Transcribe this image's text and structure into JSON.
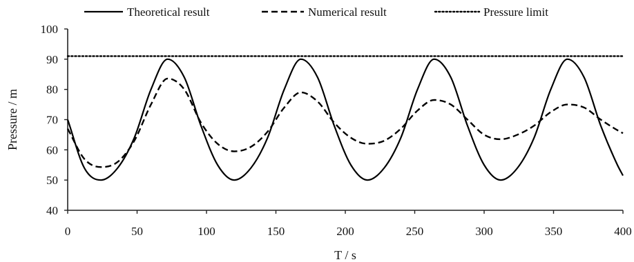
{
  "chart_data": {
    "type": "line",
    "title": "",
    "xlabel": "T / s",
    "ylabel": "Pressure / m",
    "xlim": [
      0,
      400
    ],
    "ylim": [
      40,
      100
    ],
    "x_ticks": [
      0,
      50,
      100,
      150,
      200,
      250,
      300,
      350,
      400
    ],
    "y_ticks": [
      40,
      50,
      60,
      70,
      80,
      90,
      100
    ],
    "grid": false,
    "legend_position": "top",
    "series": [
      {
        "name": "Theoretical result",
        "style": "solid",
        "color": "#000000",
        "x": [
          0,
          12,
          24,
          36,
          48,
          60,
          72,
          84,
          96,
          108,
          120,
          132,
          144,
          156,
          168,
          180,
          192,
          204,
          216,
          228,
          240,
          252,
          264,
          276,
          288,
          300,
          312,
          324,
          336,
          348,
          360,
          372,
          384,
          396,
          400
        ],
        "y": [
          70,
          54,
          50,
          54,
          64,
          80,
          90,
          84,
          68,
          55,
          50,
          54,
          64,
          80,
          90,
          84,
          68,
          55,
          50,
          54,
          64,
          80,
          90,
          84,
          68,
          55,
          50,
          54,
          64,
          80,
          90,
          84,
          68,
          55,
          51.5
        ]
      },
      {
        "name": "Numerical result",
        "style": "dashed",
        "color": "#000000",
        "x": [
          0,
          12,
          24,
          36,
          48,
          60,
          72,
          84,
          96,
          108,
          120,
          132,
          144,
          156,
          168,
          180,
          192,
          204,
          216,
          228,
          240,
          252,
          264,
          276,
          288,
          300,
          312,
          324,
          336,
          348,
          360,
          372,
          384,
          396,
          400
        ],
        "y": [
          67,
          57,
          54.3,
          56,
          63,
          75,
          83.6,
          80,
          69,
          62,
          59.5,
          61,
          66,
          74,
          79,
          76,
          69,
          64,
          62,
          63,
          67,
          73,
          76.5,
          75,
          70,
          65,
          63.5,
          65,
          68,
          72.5,
          75,
          74,
          70,
          66.5,
          65.5
        ]
      },
      {
        "name": "Pressure limit",
        "style": "dotted",
        "color": "#000000",
        "x": [
          0,
          400
        ],
        "y": [
          91,
          91
        ]
      }
    ]
  }
}
